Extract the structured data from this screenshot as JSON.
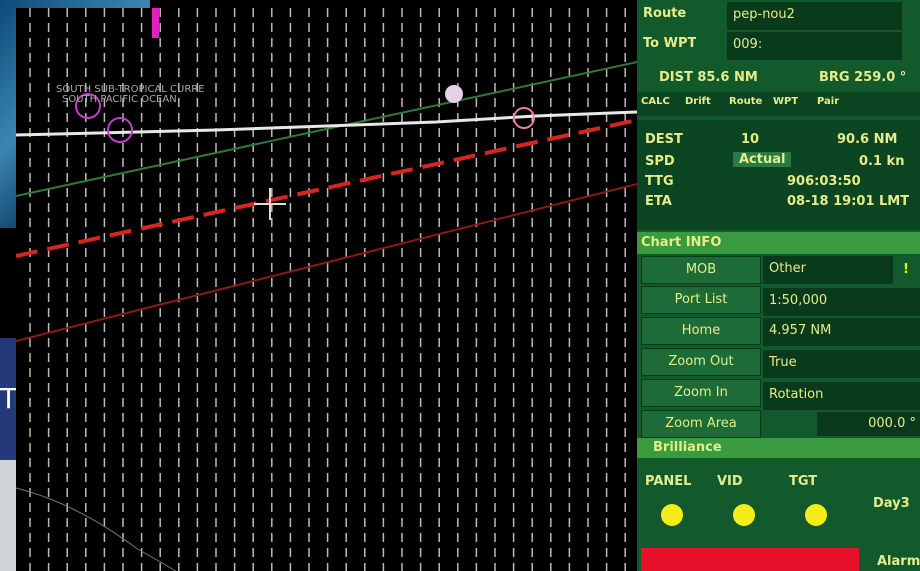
{
  "badge": "TL",
  "chart": {
    "current_label": "SOUTH SUB-TROPICAL CURRE",
    "ocean_label": "SOUTH PACIFIC OCEAN"
  },
  "panel": {
    "route": {
      "label": "Route",
      "value": "pep-nou2"
    },
    "to_wpt": {
      "label": "To WPT",
      "value": "009:"
    },
    "dist": "DIST 85.6 NM",
    "brg": "BRG 259.0 °",
    "tabs": [
      "CALC",
      "Drift",
      "Route",
      "WPT",
      "Pair"
    ],
    "calc": {
      "dest_label": "DEST",
      "dest_value": "10",
      "dest_dist": "90.6 NM",
      "spd_label": "SPD",
      "spd_mode": "Actual",
      "spd_value": "0.1 kn",
      "ttg_label": "TTG",
      "ttg_value": "906:03:50",
      "eta_label": "ETA",
      "eta_value": "08-18 19:01 LMT"
    },
    "chart_info": {
      "title": "Chart INFO",
      "mob": "MOB",
      "type": "Other",
      "warn": "!",
      "buttons": [
        "Port List",
        "Home",
        "Zoom Out",
        "Zoom In",
        "Zoom Area"
      ],
      "scale": "1:50,000",
      "range": "4.957 NM",
      "orientation": "True",
      "rotation": "Rotation",
      "angle": "000.0 °"
    },
    "brilliance": "Brilliance",
    "indicators": [
      "PANEL",
      "VID",
      "TGT"
    ],
    "palette": "Day3",
    "alarm": "Alarm"
  }
}
